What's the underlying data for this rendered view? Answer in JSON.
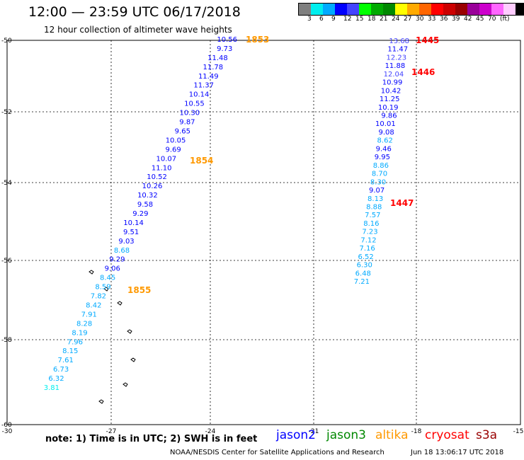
{
  "header": {
    "title": "12:00 — 23:59 UTC 06/17/2018",
    "subtitle": "12 hour collection of altimeter wave heights"
  },
  "legend": {
    "colors": [
      "#7f7f7f",
      "#00eeee",
      "#00aaff",
      "#0000ff",
      "#4444ff",
      "#00ff00",
      "#00aa00",
      "#008800",
      "#ffff00",
      "#ffaa00",
      "#ff6600",
      "#ff0000",
      "#cc0000",
      "#990000",
      "#990099",
      "#cc00cc",
      "#ff66ff",
      "#ffccff",
      "#000000"
    ],
    "labels": [
      "3",
      "6",
      "9",
      "12",
      "15",
      "18",
      "21",
      "24",
      "27",
      "30",
      "33",
      "36",
      "39",
      "42",
      "45",
      "70",
      "(ft)"
    ]
  },
  "axes": {
    "lat_labels": [
      "-50",
      "-52",
      "-54",
      "-56",
      "-58",
      "-60"
    ],
    "lon_labels": [
      "-30",
      "-27",
      "-24",
      "-21",
      "-18",
      "-15"
    ]
  },
  "track_a": {
    "values": [
      "10.56",
      "9.73",
      "11.48",
      "11.78",
      "11.49",
      "11.37",
      "10.14",
      "10.55",
      "10.30",
      "9.87",
      "9.65",
      "10.05",
      "9.69",
      "10.07",
      "11.10",
      "10.52",
      "10.26",
      "10.32",
      "9.58",
      "9.29",
      "10.14",
      "9.51",
      "9.03",
      "8.68",
      "9.29",
      "9.06",
      "8.45",
      "8.59",
      "7.82",
      "8.42",
      "7.91",
      "8.28",
      "8.19",
      "7.96",
      "8.15",
      "7.61",
      "6.73",
      "6.32",
      "3.81"
    ],
    "time_labels": [
      {
        "text": "1853",
        "color": "#ff9900"
      },
      {
        "text": "1854",
        "color": "#ff9900"
      },
      {
        "text": "1855",
        "color": "#ff9900"
      }
    ]
  },
  "track_b": {
    "values": [
      "13.68",
      "11.47",
      "12.23",
      "11.88",
      "12.04",
      "10.99",
      "10.42",
      "11.25",
      "10.19",
      "9.86",
      "10.01",
      "9.08",
      "8.62",
      "9.46",
      "9.95",
      "8.86",
      "8.70",
      "8.30",
      "9.07",
      "8.13",
      "8.88",
      "7.57",
      "8.16",
      "7.23",
      "7.12",
      "7.16",
      "6.52",
      "6.30",
      "6.48",
      "7.21"
    ],
    "time_labels": [
      {
        "text": "1445",
        "color": "#ff0000"
      },
      {
        "text": "1446",
        "color": "#ff0000"
      },
      {
        "text": "1447",
        "color": "#ff0000"
      }
    ]
  },
  "note": "note: 1) Time is in UTC; 2) SWH is in feet",
  "satellites": [
    {
      "name": "jason2",
      "color": "#0000ff"
    },
    {
      "name": "jason3",
      "color": "#008800"
    },
    {
      "name": "altika",
      "color": "#ff9900"
    },
    {
      "name": "cryosat",
      "color": "#ff0000"
    },
    {
      "name": "s3a",
      "color": "#990000"
    }
  ],
  "footer": {
    "credit": "NOAA/NESDIS Center for Satellite Applications and Research",
    "timestamp": "Jun 18 13:06:17 UTC 2018"
  }
}
